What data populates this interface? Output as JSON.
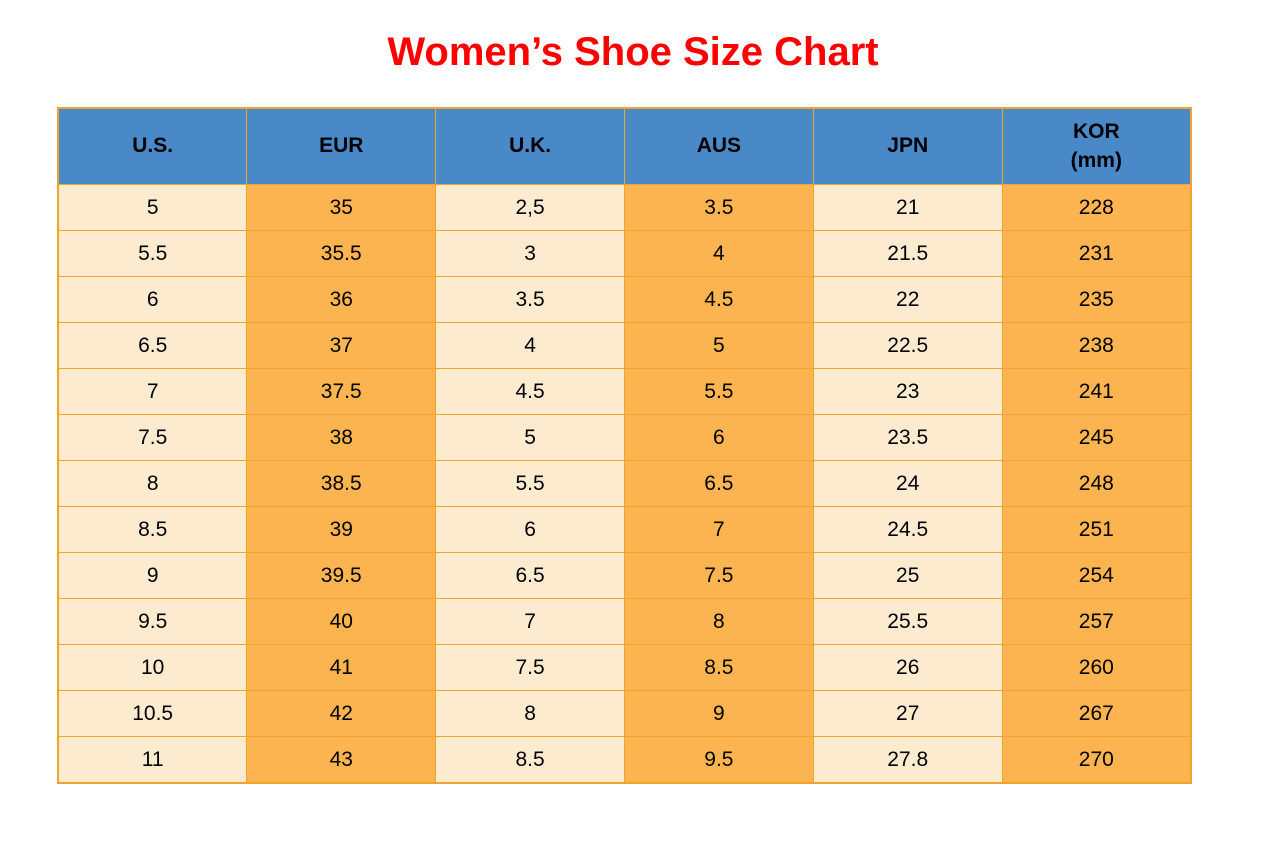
{
  "title": "Women’s Shoe Size Chart",
  "chart_data": {
    "type": "table",
    "title": "Women’s Shoe Size Chart",
    "columns": [
      {
        "label": "U.S."
      },
      {
        "label": "EUR"
      },
      {
        "label": "U.K."
      },
      {
        "label": "AUS"
      },
      {
        "label": "JPN"
      },
      {
        "label": "KOR",
        "sublabel": "(mm)"
      }
    ],
    "rows": [
      [
        "5",
        "35",
        "2,5",
        "3.5",
        "21",
        "228"
      ],
      [
        "5.5",
        "35.5",
        "3",
        "4",
        "21.5",
        "231"
      ],
      [
        "6",
        "36",
        "3.5",
        "4.5",
        "22",
        "235"
      ],
      [
        "6.5",
        "37",
        "4",
        "5",
        "22.5",
        "238"
      ],
      [
        "7",
        "37.5",
        "4.5",
        "5.5",
        "23",
        "241"
      ],
      [
        "7.5",
        "38",
        "5",
        "6",
        "23.5",
        "245"
      ],
      [
        "8",
        "38.5",
        "5.5",
        "6.5",
        "24",
        "248"
      ],
      [
        "8.5",
        "39",
        "6",
        "7",
        "24.5",
        "251"
      ],
      [
        "9",
        "39.5",
        "6.5",
        "7.5",
        "25",
        "254"
      ],
      [
        "9.5",
        "40",
        "7",
        "8",
        "25.5",
        "257"
      ],
      [
        "10",
        "41",
        "7.5",
        "8.5",
        "26",
        "260"
      ],
      [
        "10.5",
        "42",
        "8",
        "9",
        "27",
        "267"
      ],
      [
        "11",
        "43",
        "8.5",
        "9.5",
        "27.8",
        "270"
      ]
    ],
    "layout": {
      "grid": "all-borders",
      "column_fill_pattern": [
        "cream",
        "orange",
        "cream",
        "orange",
        "cream",
        "orange"
      ]
    }
  },
  "colors": {
    "title_red": "#FF0000",
    "header_blue": "#4A89C8",
    "cell_cream": "#FDEBD0",
    "cell_orange": "#FBB450",
    "border_orange": "#F0A32F",
    "text_black": "#000000"
  }
}
